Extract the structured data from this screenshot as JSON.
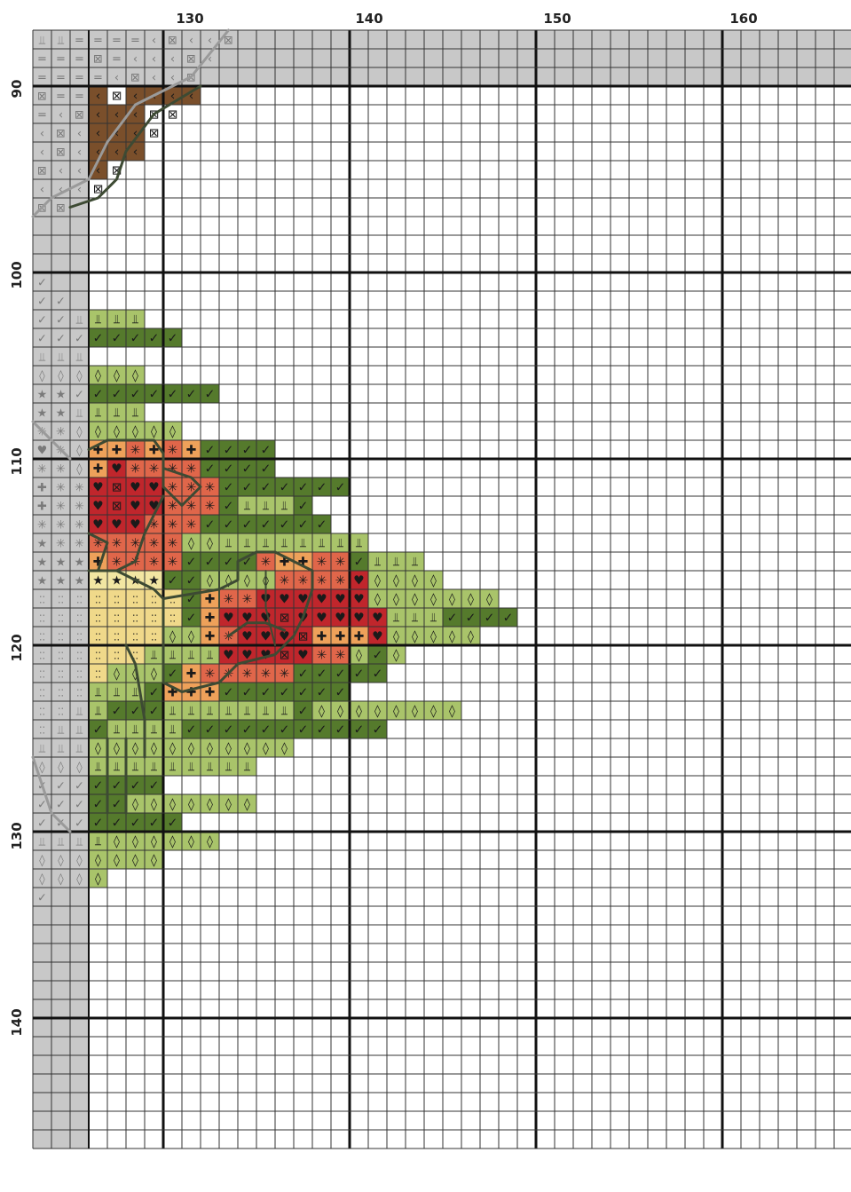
{
  "column_labels": [
    "130",
    "140",
    "150",
    "160"
  ],
  "row_labels": [
    "90",
    "100",
    "110",
    "120",
    "130",
    "140"
  ],
  "grid": {
    "first_column": 123,
    "first_row": 87,
    "columns": 44,
    "rows": 60,
    "major_every": 10
  },
  "colors": {
    "grid_minor": "#333333",
    "grid_major": "#111111",
    "shaded_area": "#c8c8c8",
    "shaded_symbol": "#7a7a7a",
    "backstitch": "#3d4a33",
    "backstitch_shaded": "#9a9a9a",
    "palette": {
      "brown": "#7a4f2b",
      "dark_green": "#557a2c",
      "light_green": "#a9c46a",
      "red": "#c0262c",
      "salmon": "#e0664a",
      "peach": "#eea15a",
      "pale_yellow": "#f2e6a2",
      "cream": "#f0d98a",
      "white": "#ffffff"
    }
  },
  "symbols": {
    "check": "✓",
    "diamond": "◊",
    "anchor": "⫫",
    "plus": "✚",
    "heart": "♥",
    "asterisk": "✳",
    "star": "★",
    "dots": "⁚⁚",
    "chevron": "‹",
    "square": "⊠",
    "x": "✕",
    "equals": "="
  }
}
